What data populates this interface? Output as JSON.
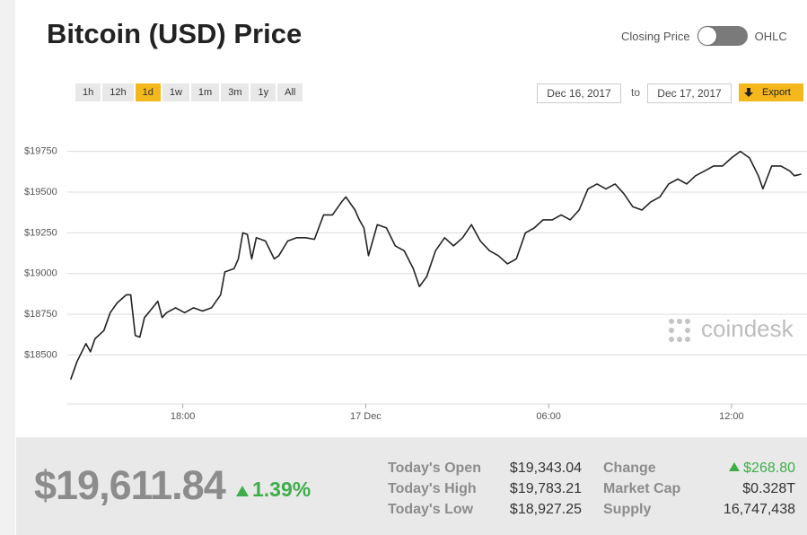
{
  "header": {
    "title": "Bitcoin (USD) Price",
    "toggle_left": "Closing Price",
    "toggle_right": "OHLC"
  },
  "controls": {
    "ranges": [
      "1h",
      "12h",
      "1d",
      "1w",
      "1m",
      "3m",
      "1y",
      "All"
    ],
    "date_from": "Dec 16, 2017",
    "to": "to",
    "date_to": "Dec 17, 2017",
    "export": "Export"
  },
  "chart_data": {
    "type": "line",
    "color": "#222222",
    "watermark": "coindesk",
    "x": [
      14.32,
      14.53,
      14.82,
      14.97,
      15.12,
      15.41,
      15.62,
      15.85,
      16.15,
      16.29,
      16.44,
      16.59,
      16.74,
      16.88,
      17.18,
      17.32,
      17.47,
      17.76,
      18.06,
      18.35,
      18.65,
      18.94,
      19.24,
      19.38,
      19.68,
      19.82,
      19.97,
      20.12,
      20.26,
      20.41,
      20.71,
      21.0,
      21.15,
      21.44,
      21.74,
      22.03,
      22.32,
      22.62,
      22.91,
      23.21,
      23.35,
      23.65,
      23.79,
      23.94,
      24.09,
      24.38,
      24.68,
      24.97,
      25.26,
      25.56,
      25.76,
      26.0,
      26.29,
      26.59,
      26.88,
      27.18,
      27.47,
      27.76,
      28.06,
      28.35,
      28.65,
      28.94,
      29.24,
      29.53,
      29.82,
      30.12,
      30.41,
      30.71,
      31.0,
      31.29,
      31.59,
      31.88,
      32.18,
      32.47,
      32.76,
      33.06,
      33.35,
      33.65,
      33.94,
      34.24,
      34.53,
      34.82,
      35.12,
      35.41,
      35.71,
      36.0,
      36.29,
      36.59,
      36.88,
      37.03,
      37.32,
      37.62,
      37.91,
      38.06,
      38.29
    ],
    "values": [
      18350,
      18460,
      18570,
      18520,
      18600,
      18650,
      18760,
      18820,
      18870,
      18870,
      18620,
      18610,
      18730,
      18760,
      18830,
      18730,
      18760,
      18790,
      18760,
      18790,
      18770,
      18790,
      18870,
      19010,
      19030,
      19090,
      19250,
      19240,
      19090,
      19220,
      19200,
      19090,
      19110,
      19200,
      19220,
      19220,
      19210,
      19360,
      19360,
      19440,
      19470,
      19390,
      19330,
      19280,
      19110,
      19300,
      19280,
      19170,
      19140,
      19030,
      18920,
      18980,
      19140,
      19220,
      19170,
      19220,
      19300,
      19200,
      19140,
      19110,
      19060,
      19090,
      19250,
      19280,
      19330,
      19330,
      19360,
      19330,
      19390,
      19520,
      19550,
      19520,
      19550,
      19490,
      19410,
      19390,
      19440,
      19470,
      19550,
      19580,
      19550,
      19600,
      19630,
      19660,
      19660,
      19710,
      19750,
      19710,
      19600,
      19520,
      19660,
      19660,
      19630,
      19600,
      19610
    ],
    "xlim": [
      14.3,
      38.3
    ],
    "xticks": [
      {
        "value": 18,
        "label": "18:00"
      },
      {
        "value": 24,
        "label": "17 Dec"
      },
      {
        "value": 30,
        "label": "06:00"
      },
      {
        "value": 36,
        "label": "12:00"
      }
    ],
    "ylim": [
      18200,
      19880
    ],
    "yticks": [
      {
        "value": 18500,
        "label": "$18500"
      },
      {
        "value": 18750,
        "label": "$18750"
      },
      {
        "value": 19000,
        "label": "$19000"
      },
      {
        "value": 19250,
        "label": "$19250"
      },
      {
        "value": 19500,
        "label": "$19500"
      },
      {
        "value": 19750,
        "label": "$19750"
      }
    ],
    "grid": true
  },
  "stats": {
    "price": "$19,611.84",
    "change_pct": "1.39%",
    "rows": [
      [
        "Today's Open",
        "$19,343.04",
        "Change",
        "$268.80"
      ],
      [
        "Today's High",
        "$19,783.21",
        "Market Cap",
        "$0.328T"
      ],
      [
        "Today's Low",
        "$18,927.25",
        "Supply",
        "16,747,438"
      ]
    ]
  }
}
